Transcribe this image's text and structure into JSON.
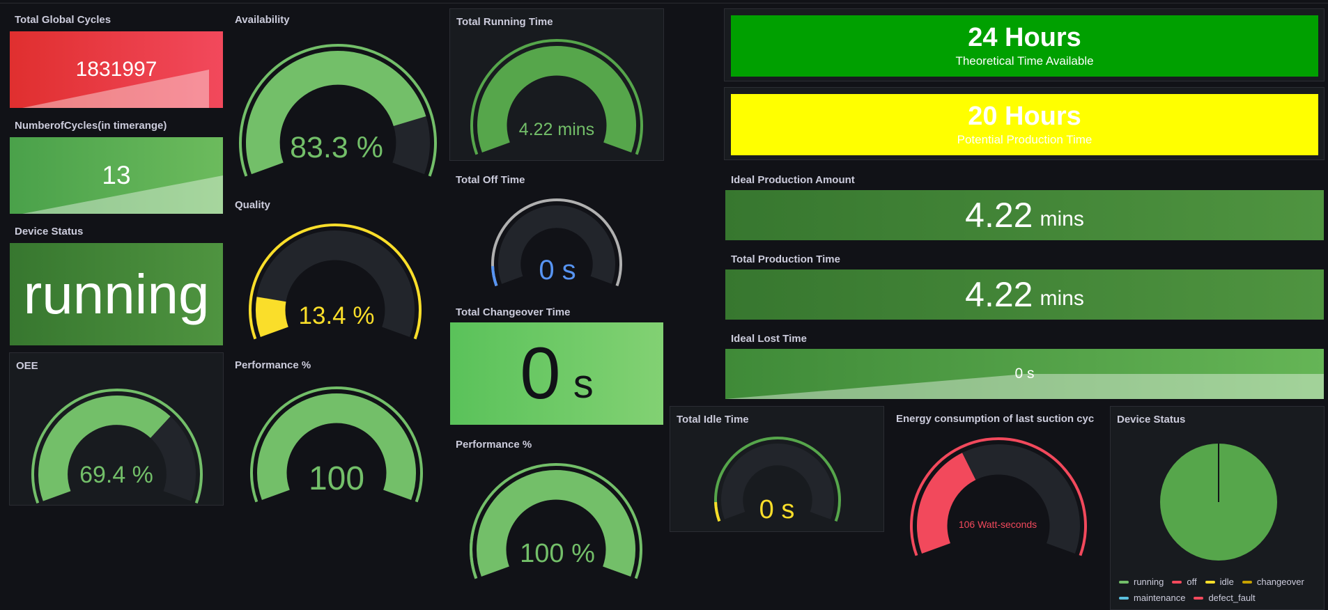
{
  "colors": {
    "green": "#73bf69",
    "dark_green": "#56a64b",
    "yellow": "#fade2a",
    "red": "#f2495c",
    "blue": "#5794f2",
    "track": "#22252b",
    "bg": "#111217"
  },
  "total_global_cycles": {
    "title": "Total Global Cycles",
    "value": "1831997"
  },
  "cycles_in_range": {
    "title": "NumberofCycles(in timerange)",
    "value": "13"
  },
  "device_status_stat": {
    "title": "Device Status",
    "value": "running"
  },
  "oee": {
    "title": "OEE",
    "value": "69.4 %",
    "percent": 69.4
  },
  "availability": {
    "title": "Availability",
    "value": "83.3 %",
    "percent": 83.3
  },
  "quality": {
    "title": "Quality",
    "value": "13.4 %",
    "percent": 13.4
  },
  "performance_left": {
    "title": "Performance %",
    "value": "100",
    "percent": 100
  },
  "total_running_time": {
    "title": "Total Running Time",
    "value": "4.22 mins",
    "percent": 100
  },
  "total_off_time": {
    "title": "Total Off Time",
    "value": "0 s",
    "percent": 0
  },
  "total_changeover_time": {
    "title": "Total Changeover Time",
    "value": "0",
    "unit": "s"
  },
  "performance_mid": {
    "title": "Performance %",
    "value": "100 %",
    "percent": 100
  },
  "theoretical_time": {
    "value": "24 Hours",
    "label": "Theoretical Time Available"
  },
  "potential_time": {
    "value": "20 Hours",
    "label": "Potential Production Time"
  },
  "ideal_production_amount": {
    "title": "Ideal Production Amount",
    "value": "4.22",
    "unit": "mins"
  },
  "total_production_time": {
    "title": "Total Production Time",
    "value": "4.22",
    "unit": "mins"
  },
  "ideal_lost_time": {
    "title": "Ideal Lost Time",
    "value": "0 s"
  },
  "total_idle_time": {
    "title": "Total Idle Time",
    "value": "0 s",
    "percent": 0
  },
  "energy": {
    "title": "Energy consumption of last suction cycle",
    "value": "106 Watt-seconds",
    "percent": 38
  },
  "device_status_pie": {
    "title": "Device Status",
    "legend": [
      {
        "label": "running",
        "color": "#73bf69"
      },
      {
        "label": "off",
        "color": "#f2495c"
      },
      {
        "label": "idle",
        "color": "#fade2a"
      },
      {
        "label": "changeover",
        "color": "#c4a000"
      },
      {
        "label": "maintenance",
        "color": "#5bc0de"
      },
      {
        "label": "defect_fault",
        "color": "#f2495c"
      }
    ]
  }
}
